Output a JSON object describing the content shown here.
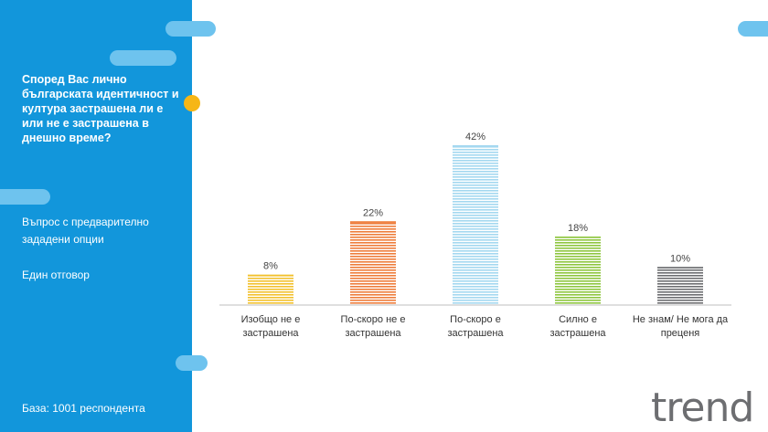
{
  "sidebar": {
    "question": "Според Вас лично българската идентичност и култура застрашена ли е или не е застрашена в днешно време?",
    "note_line1": "Въпрос с предварително зададени опции",
    "note_line2": "Един отговор",
    "base": "База:  1001 респондента"
  },
  "brand": {
    "logo_text": "trend"
  },
  "colors": {
    "sidebar": "#1296db",
    "pill": "#6ec3ee",
    "accent_dot": "#f6b616"
  },
  "chart_data": {
    "type": "bar",
    "categories": [
      [
        "Изобщо не е",
        "застрашена"
      ],
      [
        "По-скоро не е",
        "застрашена"
      ],
      [
        "По-скоро е",
        "застрашена"
      ],
      [
        "Силно е",
        "застрашена"
      ],
      [
        "Не знам/ Не мога да",
        "преценя"
      ]
    ],
    "values": [
      8,
      22,
      42,
      18,
      10
    ],
    "value_labels": [
      "8%",
      "22%",
      "42%",
      "18%",
      "10%"
    ],
    "colors": [
      "#f2c12e",
      "#ee7d3b",
      "#a4d8f0",
      "#8ec63f",
      "#6d6e71"
    ],
    "ylim": [
      0,
      42
    ],
    "grid": false,
    "legend": "none"
  }
}
